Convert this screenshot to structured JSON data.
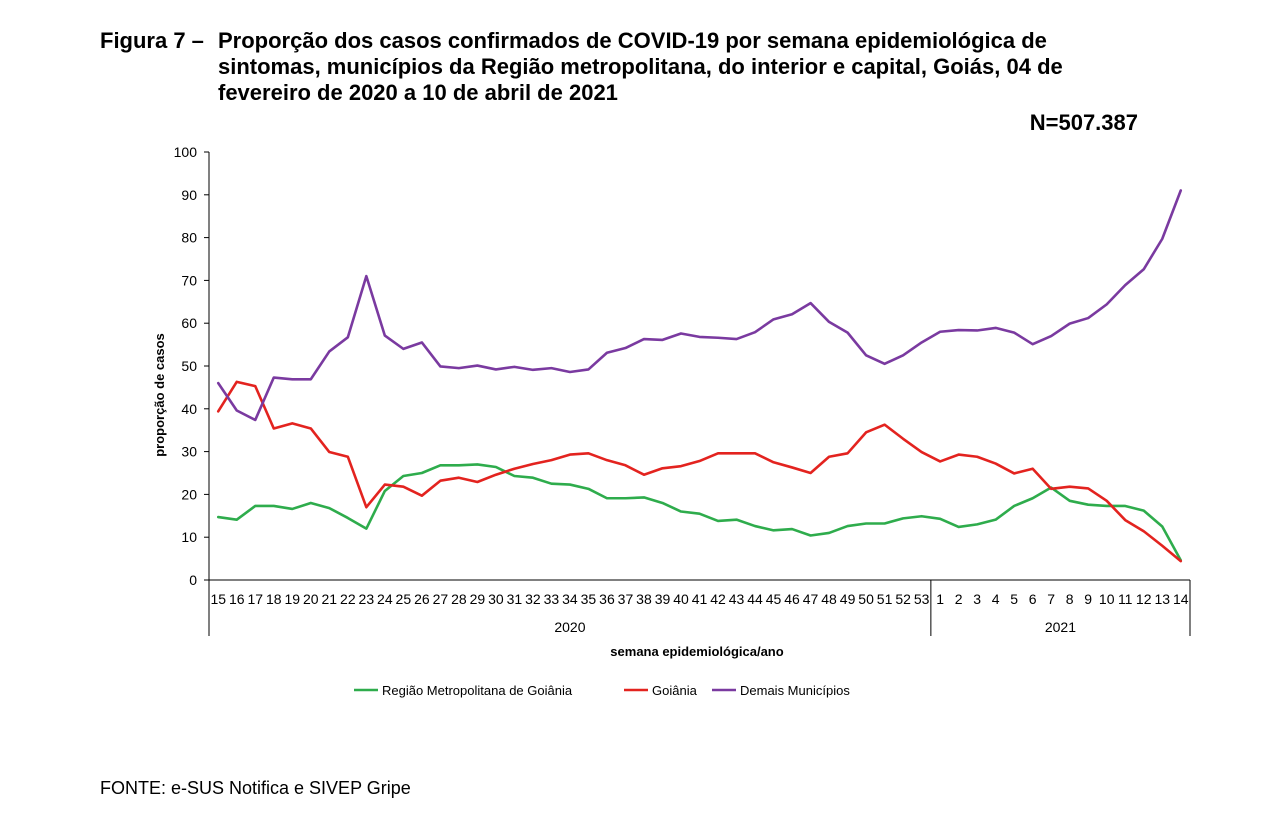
{
  "figure": {
    "label": "Figura 7 –",
    "title": "Proporção dos casos confirmados de COVID-19 por semana epidemiológica de sintomas, municípios da Região metropolitana, do interior e capital, Goiás, 04 de fevereiro de 2020 a 10 de abril de 2021",
    "n_label": "N=507.387",
    "source": "FONTE: e-SUS Notifica e SIVEP Gripe"
  },
  "colors": {
    "regiao_metropolitana": "#2eac4c",
    "goiania": "#e3231f",
    "demais_municipios": "#7a3aa0",
    "axis": "#000000"
  },
  "chart_data": {
    "type": "line",
    "title": "",
    "ylabel": "proporção de casos",
    "xlabel": "semana epidemiológica/ano",
    "ylim": [
      0,
      100
    ],
    "yticks": [
      0,
      10,
      20,
      30,
      40,
      50,
      60,
      70,
      80,
      90,
      100
    ],
    "grid": false,
    "legend_position": "bottom",
    "x": [
      "15",
      "16",
      "17",
      "18",
      "19",
      "20",
      "21",
      "22",
      "23",
      "24",
      "25",
      "26",
      "27",
      "28",
      "29",
      "30",
      "31",
      "32",
      "33",
      "34",
      "35",
      "36",
      "37",
      "38",
      "39",
      "40",
      "41",
      "42",
      "43",
      "44",
      "45",
      "46",
      "47",
      "48",
      "49",
      "50",
      "51",
      "52",
      "53",
      "1",
      "2",
      "3",
      "4",
      "5",
      "6",
      "7",
      "8",
      "9",
      "10",
      "11",
      "12",
      "13",
      "14"
    ],
    "year_groups": [
      {
        "label": "2020",
        "count": 39
      },
      {
        "label": "2021",
        "count": 14
      }
    ],
    "series": [
      {
        "name": "Região Metropolitana de Goiânia",
        "color_key": "regiao_metropolitana",
        "values": [
          14.7,
          14.1,
          17.3,
          17.3,
          16.6,
          18.0,
          16.8,
          14.5,
          12.0,
          20.8,
          24.3,
          25.0,
          26.8,
          26.8,
          27.0,
          26.4,
          24.3,
          23.9,
          22.5,
          22.3,
          21.3,
          19.1,
          19.1,
          19.3,
          18.0,
          16.0,
          15.5,
          13.8,
          14.1,
          12.6,
          11.6,
          11.9,
          10.4,
          11.0,
          12.6,
          13.2,
          13.2,
          14.4,
          14.9,
          14.3,
          12.4,
          13.0,
          14.1,
          17.3,
          19.1,
          21.6,
          18.5,
          17.6,
          17.3,
          17.3,
          16.2,
          12.5,
          4.6
        ]
      },
      {
        "name": "Goiânia",
        "color_key": "goiania",
        "values": [
          39.4,
          46.3,
          45.3,
          35.4,
          36.6,
          35.4,
          29.9,
          28.8,
          17.0,
          22.3,
          21.8,
          19.7,
          23.2,
          23.9,
          22.9,
          24.6,
          26.0,
          27.1,
          28.0,
          29.3,
          29.6,
          28.0,
          26.8,
          24.6,
          26.1,
          26.6,
          27.8,
          29.6,
          29.6,
          29.6,
          27.5,
          26.3,
          25.0,
          28.8,
          29.6,
          34.5,
          36.3,
          33.0,
          29.9,
          27.7,
          29.3,
          28.8,
          27.2,
          24.9,
          26.0,
          21.3,
          21.8,
          21.4,
          18.5,
          14.0,
          11.4,
          8.0,
          4.4
        ]
      },
      {
        "name": "Demais Municípios",
        "color_key": "demais_municipios",
        "values": [
          46.0,
          39.6,
          37.4,
          47.3,
          46.9,
          46.9,
          53.4,
          56.7,
          71.0,
          57.1,
          54.0,
          55.5,
          49.9,
          49.5,
          50.1,
          49.2,
          49.8,
          49.1,
          49.5,
          48.6,
          49.2,
          53.1,
          54.2,
          56.3,
          56.1,
          57.6,
          56.8,
          56.6,
          56.3,
          57.9,
          60.9,
          62.1,
          64.7,
          60.3,
          57.8,
          52.5,
          50.5,
          52.5,
          55.5,
          58.0,
          58.4,
          58.3,
          58.9,
          57.8,
          55.1,
          57.0,
          59.9,
          61.2,
          64.4,
          68.9,
          72.6,
          79.7,
          91.0
        ]
      }
    ]
  }
}
